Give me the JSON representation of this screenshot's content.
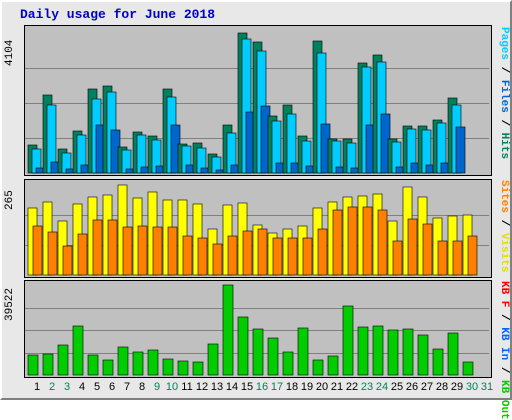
{
  "chart_data": {
    "type": "bar",
    "title": "Daily usage for June 2018",
    "categories": [
      "1",
      "2",
      "3",
      "4",
      "5",
      "6",
      "7",
      "8",
      "9",
      "10",
      "11",
      "12",
      "13",
      "14",
      "15",
      "16",
      "17",
      "18",
      "19",
      "20",
      "21",
      "22",
      "23",
      "24",
      "25",
      "26",
      "27",
      "28",
      "29",
      "30",
      "31"
    ],
    "weekend_days": [
      "2",
      "3",
      "9",
      "10",
      "16",
      "17",
      "23",
      "24",
      "30",
      "31"
    ],
    "panels": [
      {
        "name": "hits-files-pages",
        "ymax_label": "4104",
        "ymax": 4104,
        "legend": [
          "Pages",
          "Files",
          "Hits"
        ],
        "series": [
          {
            "name": "Hits",
            "color": "#00805c",
            "values": [
              820,
              2290,
              700,
              1230,
              2460,
              2560,
              770,
              1210,
              1090,
              2470,
              860,
              880,
              560,
              1400,
              4104,
              3850,
              1680,
              2000,
              1080,
              3870,
              1010,
              1000,
              3210,
              3450,
              990,
              1390,
              1380,
              1540,
              2200,
              null,
              null
            ]
          },
          {
            "name": "Files",
            "color": "#00ccff",
            "values": [
              700,
              2000,
              580,
              1100,
              2160,
              2370,
              680,
              1110,
              960,
              2240,
              780,
              720,
              470,
              1170,
              3940,
              3580,
              1530,
              1720,
              950,
              3520,
              940,
              890,
              3100,
              3260,
              910,
              1290,
              1250,
              1470,
              1980,
              null,
              null
            ]
          },
          {
            "name": "Pages",
            "color": "#0066cc",
            "values": [
              150,
              320,
              110,
              220,
              1420,
              1270,
              130,
              190,
              200,
              1410,
              240,
              150,
              90,
              230,
              1780,
              1960,
              300,
              300,
              200,
              1440,
              180,
              150,
              1400,
              1720,
              190,
              280,
              230,
              290,
              1350,
              null,
              null
            ]
          }
        ]
      },
      {
        "name": "visits-sites",
        "ymax_label": "265",
        "ymax": 265,
        "legend": [
          "Sites",
          "Visits"
        ],
        "series": [
          {
            "name": "Visits",
            "color": "#ffff00",
            "values": [
              198,
              216,
              160,
              210,
              230,
              235,
              265,
              228,
              245,
              222,
              222,
              208,
              135,
              205,
              212,
              148,
              125,
              135,
              145,
              198,
              216,
              230,
              232,
              238,
              160,
              260,
              230,
              168,
              175,
              177,
              null
            ]
          },
          {
            "name": "Sites",
            "color": "#ff8000",
            "values": [
              145,
              127,
              85,
              120,
              162,
              162,
              142,
              145,
              142,
              140,
              115,
              108,
              90,
              115,
              130,
              135,
              110,
              110,
              110,
              135,
              190,
              200,
              200,
              190,
              100,
              165,
              150,
              100,
              100,
              115,
              null
            ]
          }
        ]
      },
      {
        "name": "kbytes",
        "ymax_label": "39522",
        "ymax": 39522,
        "legend": [
          "KB F",
          "KB In",
          "KB Out"
        ],
        "series": [
          {
            "name": "KB Out",
            "color": "#00cc00",
            "values": [
              8600,
              9200,
              13100,
              21400,
              8600,
              6800,
              12200,
              10300,
              11100,
              7200,
              6000,
              5800,
              13400,
              39522,
              25500,
              20200,
              16300,
              10300,
              20800,
              6800,
              8300,
              30500,
              20900,
              21500,
              19800,
              20000,
              17700,
              11600,
              18500,
              5900,
              null
            ]
          },
          {
            "name": "KB In",
            "color": "#0066ff",
            "values": [
              null,
              null,
              null,
              null,
              null,
              null,
              null,
              null,
              null,
              null,
              null,
              null,
              null,
              null,
              null,
              null,
              null,
              null,
              null,
              null,
              null,
              null,
              null,
              null,
              null,
              null,
              null,
              null,
              null,
              null,
              null
            ]
          },
          {
            "name": "KB F",
            "color": "#ff0000",
            "values": [
              null,
              null,
              null,
              null,
              null,
              null,
              null,
              null,
              null,
              null,
              null,
              null,
              null,
              null,
              null,
              null,
              null,
              null,
              null,
              null,
              null,
              null,
              null,
              null,
              null,
              null,
              null,
              null,
              null,
              null,
              null
            ]
          }
        ]
      }
    ]
  },
  "colors": {
    "title": "#0000cc",
    "weekday_label": "#000000",
    "weekend_label": "#00805c",
    "grid": "#808080",
    "kb_in_legend": "#0066ff",
    "kb_f_legend": "#ff0000",
    "kb_out_legend": "#00cc00"
  }
}
